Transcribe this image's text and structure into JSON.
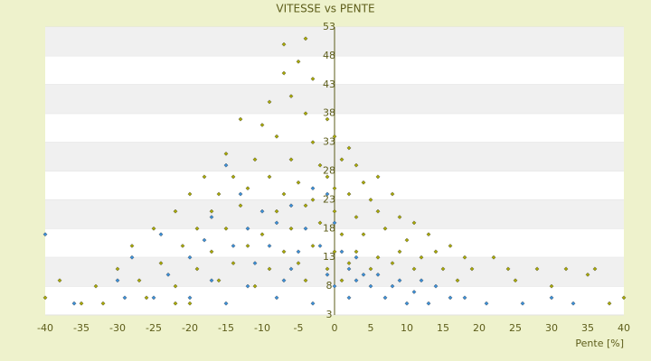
{
  "chart_data": {
    "type": "scatter",
    "title": "VITESSE vs PENTE",
    "x_label": "Pente [%]",
    "xlim": [
      -40,
      40
    ],
    "xticks": [
      -40,
      -35,
      -30,
      -25,
      -20,
      -15,
      -10,
      -5,
      0,
      5,
      10,
      15,
      20,
      25,
      30,
      35,
      40
    ],
    "ylim": [
      3,
      53
    ],
    "yticks": [
      3,
      8,
      13,
      18,
      23,
      28,
      33,
      38,
      43,
      48,
      53
    ],
    "grid": true,
    "series": [
      {
        "color": "#a8a800",
        "x": [
          -7,
          -4,
          -7,
          -5,
          -3,
          -9,
          -6,
          -13,
          -10,
          -4,
          -1,
          -8,
          -3,
          0,
          2,
          -15,
          -11,
          -6,
          -2,
          1,
          3,
          -18,
          -14,
          -9,
          -5,
          -1,
          4,
          6,
          -20,
          -16,
          -12,
          -7,
          -3,
          0,
          2,
          5,
          8,
          -22,
          -17,
          -13,
          -8,
          -4,
          0,
          3,
          6,
          9,
          11,
          -25,
          -19,
          -15,
          -10,
          -6,
          -2,
          1,
          4,
          7,
          10,
          13,
          16,
          -28,
          -21,
          -17,
          -12,
          -7,
          -3,
          0,
          3,
          6,
          9,
          12,
          14,
          18,
          22,
          -30,
          -24,
          -19,
          -14,
          -9,
          -5,
          -1,
          2,
          5,
          8,
          11,
          15,
          19,
          24,
          28,
          32,
          36,
          -38,
          -33,
          -27,
          -22,
          -16,
          -11,
          -4,
          1,
          17,
          25,
          30,
          35,
          -40,
          -35,
          -26,
          -20,
          40,
          38,
          -32,
          -22
        ],
        "values": [
          50,
          51,
          45,
          47,
          44,
          40,
          41,
          37,
          36,
          38,
          37,
          34,
          33,
          34,
          32,
          31,
          30,
          30,
          29,
          30,
          29,
          27,
          27,
          27,
          26,
          27,
          26,
          27,
          24,
          24,
          25,
          24,
          23,
          25,
          24,
          23,
          24,
          21,
          21,
          22,
          21,
          22,
          21,
          20,
          21,
          20,
          19,
          18,
          18,
          18,
          17,
          18,
          19,
          17,
          17,
          18,
          16,
          17,
          15,
          15,
          15,
          14,
          15,
          14,
          15,
          14,
          14,
          13,
          14,
          13,
          14,
          13,
          13,
          11,
          12,
          11,
          12,
          11,
          12,
          11,
          12,
          11,
          12,
          11,
          11,
          11,
          11,
          11,
          11,
          11,
          9,
          8,
          9,
          8,
          9,
          8,
          9,
          9,
          9,
          9,
          8,
          10,
          6,
          5,
          6,
          5,
          6,
          5,
          5,
          5
        ]
      },
      {
        "color": "#3a8fd8",
        "x": [
          -15,
          -13,
          -10,
          -6,
          -3,
          -1,
          -17,
          -12,
          -8,
          -4,
          0,
          -40,
          -24,
          -18,
          -14,
          -9,
          -5,
          -2,
          1,
          3,
          -28,
          -20,
          -11,
          -6,
          -1,
          2,
          4,
          6,
          9,
          12,
          -30,
          -23,
          -17,
          -12,
          -7,
          0,
          3,
          5,
          8,
          11,
          14,
          16,
          -29,
          -20,
          -15,
          -8,
          -3,
          2,
          7,
          10,
          13,
          18,
          21,
          26,
          30,
          33,
          -36,
          -25
        ],
        "values": [
          29,
          24,
          21,
          22,
          25,
          24,
          20,
          18,
          19,
          18,
          19,
          17,
          17,
          16,
          15,
          15,
          14,
          15,
          14,
          13,
          13,
          13,
          12,
          11,
          10,
          11,
          10,
          10,
          9,
          9,
          9,
          10,
          9,
          8,
          9,
          8,
          9,
          8,
          8,
          7,
          8,
          6,
          6,
          6,
          5,
          6,
          5,
          6,
          6,
          5,
          5,
          6,
          5,
          5,
          6,
          5,
          5,
          6
        ]
      }
    ]
  }
}
